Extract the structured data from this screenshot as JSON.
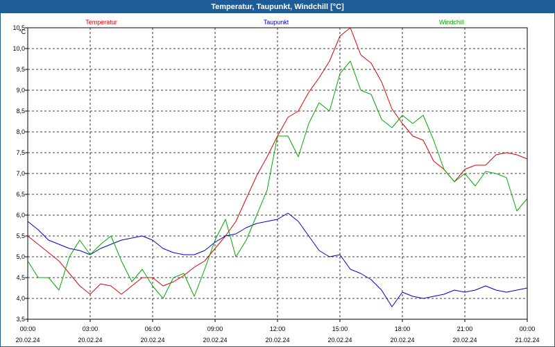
{
  "window": {
    "title": "Temperatur, Taupunkt, Windchill [°C]"
  },
  "chart_data": {
    "type": "line",
    "title": "Temperatur, Taupunkt, Windchill [°C]",
    "ylabel": "°C",
    "ylim": [
      3.5,
      10.5
    ],
    "grid": true,
    "legend_position": "top",
    "y_ticks": [
      "3,5",
      "4,0",
      "4,5",
      "5,0",
      "5,5",
      "6,0",
      "6,5",
      "7,0",
      "7,5",
      "8,0",
      "8,5",
      "9,0",
      "9,5",
      "10,0",
      "10,5"
    ],
    "x_ticks": [
      {
        "time": "00:00",
        "date": "20.02.24",
        "hour": 0
      },
      {
        "time": "03:00",
        "date": "20.02.24",
        "hour": 3
      },
      {
        "time": "06:00",
        "date": "20.02.24",
        "hour": 6
      },
      {
        "time": "09:00",
        "date": "20.02.24",
        "hour": 9
      },
      {
        "time": "12:00",
        "date": "20.02.24",
        "hour": 12
      },
      {
        "time": "15:00",
        "date": "20.02.24",
        "hour": 15
      },
      {
        "time": "18:00",
        "date": "20.02.24",
        "hour": 18
      },
      {
        "time": "21:00",
        "date": "20.02.24",
        "hour": 21
      },
      {
        "time": "00:00",
        "date": "21.02.24",
        "hour": 24
      }
    ],
    "x_hours": [
      0,
      0.5,
      1,
      1.5,
      2,
      2.5,
      3,
      3.5,
      4,
      4.5,
      5,
      5.5,
      6,
      6.5,
      7,
      7.5,
      8,
      8.5,
      9,
      9.5,
      10,
      10.5,
      11,
      11.5,
      12,
      12.5,
      13,
      13.5,
      14,
      14.5,
      15,
      15.5,
      16,
      16.5,
      17,
      17.5,
      18,
      18.5,
      19,
      19.5,
      20,
      20.5,
      21,
      21.5,
      22,
      22.5,
      23,
      23.5,
      24
    ],
    "series": [
      {
        "name": "Temperatur",
        "color": "#e00000",
        "values": [
          5.5,
          5.3,
          5.1,
          4.9,
          4.6,
          4.3,
          4.1,
          4.35,
          4.3,
          4.1,
          4.3,
          4.5,
          4.5,
          4.3,
          4.4,
          4.55,
          4.75,
          4.9,
          5.2,
          5.5,
          5.85,
          6.4,
          6.95,
          7.4,
          7.9,
          8.35,
          8.5,
          8.95,
          9.3,
          9.7,
          10.3,
          10.5,
          9.85,
          9.65,
          9.2,
          8.55,
          8.2,
          7.9,
          7.8,
          7.3,
          7.1,
          6.8,
          7.1,
          7.2,
          7.2,
          7.45,
          7.5,
          7.45,
          7.35
        ]
      },
      {
        "name": "Taupunkt",
        "color": "#0000cc",
        "values": [
          5.85,
          5.65,
          5.4,
          5.3,
          5.2,
          5.15,
          5.05,
          5.2,
          5.3,
          5.4,
          5.45,
          5.5,
          5.4,
          5.2,
          5.1,
          5.05,
          5.05,
          5.15,
          5.35,
          5.5,
          5.55,
          5.7,
          5.8,
          5.85,
          5.9,
          6.05,
          5.85,
          5.5,
          5.15,
          5.0,
          5.05,
          4.7,
          4.6,
          4.45,
          4.2,
          3.8,
          4.15,
          4.05,
          4.0,
          4.05,
          4.1,
          4.2,
          4.15,
          4.2,
          4.3,
          4.2,
          4.15,
          4.2,
          4.25
        ]
      },
      {
        "name": "Windchill",
        "color": "#00aa00",
        "values": [
          4.9,
          4.5,
          4.5,
          4.2,
          5.0,
          5.4,
          5.05,
          5.3,
          5.5,
          4.9,
          4.4,
          4.7,
          4.3,
          4.0,
          4.5,
          4.6,
          4.05,
          4.7,
          5.4,
          5.9,
          5.0,
          5.4,
          6.0,
          6.6,
          7.9,
          7.9,
          7.4,
          8.2,
          8.7,
          8.5,
          9.4,
          9.7,
          9.0,
          8.9,
          8.3,
          8.1,
          8.4,
          8.2,
          8.4,
          7.8,
          7.1,
          6.8,
          7.0,
          6.7,
          7.05,
          7.0,
          6.9,
          6.1,
          6.4
        ]
      }
    ]
  }
}
